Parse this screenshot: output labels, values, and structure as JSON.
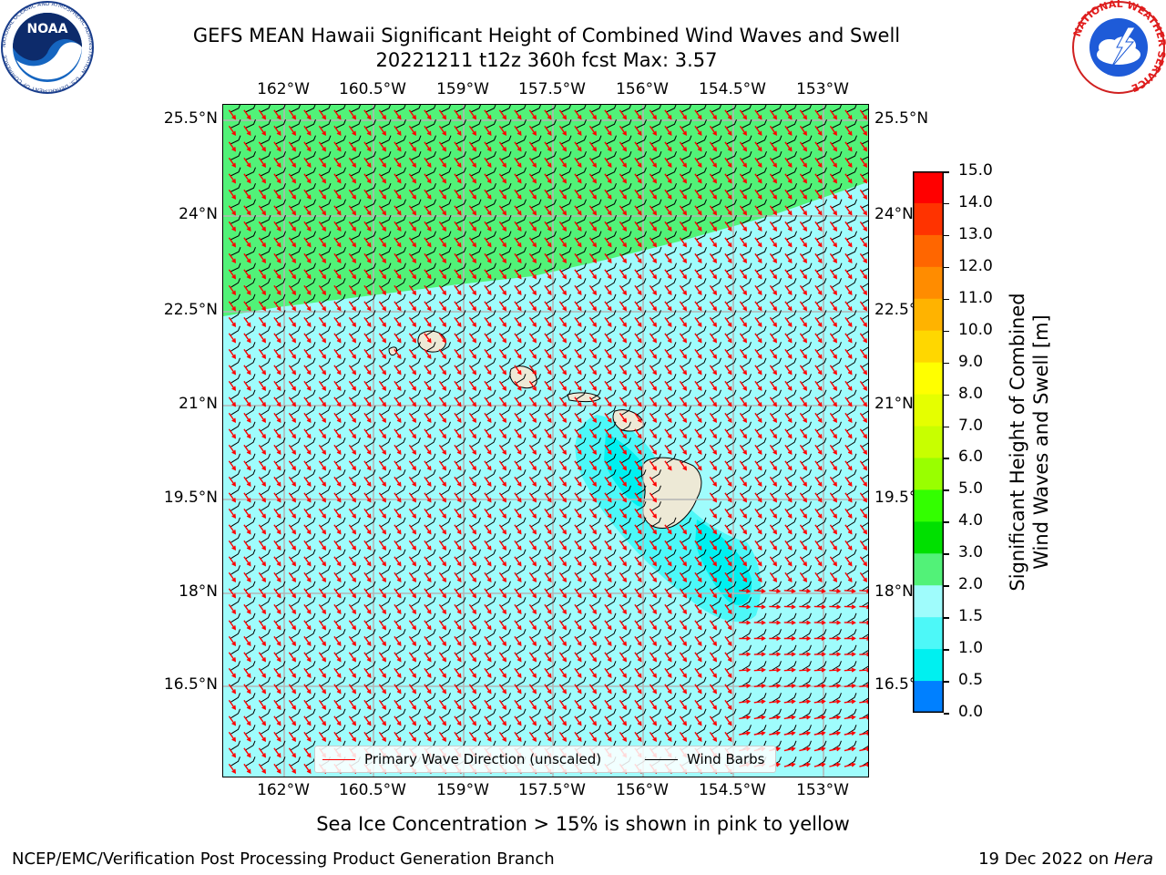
{
  "header": {
    "title_line1": "GEFS MEAN Hawaii Significant Height of Combined Wind Waves and Swell",
    "title_line2": "20221211 t12z 360h fcst   Max: 3.57"
  },
  "logos": {
    "left_name": "NOAA",
    "left_ring_text": "NATIONAL OCEANIC AND ATMOSPHERIC ADMINISTRATION · U.S. DEPARTMENT OF COMMERCE",
    "right_ring_text": "NATIONAL WEATHER SERVICE"
  },
  "map": {
    "lon_labels": [
      "162°W",
      "160.5°W",
      "159°W",
      "157.5°W",
      "156°W",
      "154.5°W",
      "153°W"
    ],
    "lat_labels": [
      "25.5°N",
      "24°N",
      "22.5°N",
      "21°N",
      "19.5°N",
      "18°N",
      "16.5°N"
    ],
    "colors": {
      "ocean_main": "#9ffcfc",
      "ocean_mid": "#4df8f8",
      "ocean_low": "#00f0f0",
      "high_band": "#52f278",
      "land": "#ede9d6",
      "wave_arrow": "#ff0000",
      "wind_barb": "#000000",
      "gridline": "#b4b4b4"
    },
    "legend": {
      "wave_label": "Primary Wave Direction (unscaled)",
      "barb_label": "Wind Barbs"
    }
  },
  "colorbar": {
    "ticks": [
      "15.0",
      "14.0",
      "13.0",
      "12.0",
      "11.0",
      "10.0",
      "9.0",
      "8.0",
      "7.0",
      "6.0",
      "5.0",
      "4.0",
      "3.0",
      "2.0",
      "1.5",
      "1.0",
      "0.5",
      "0.0"
    ],
    "colors": [
      "#ff0000",
      "#ff3300",
      "#ff6600",
      "#ff8c00",
      "#ffb300",
      "#ffd700",
      "#ffff00",
      "#e5ff00",
      "#c8ff00",
      "#99ff00",
      "#33ff00",
      "#00e000",
      "#52f278",
      "#9ffcfc",
      "#4df8f8",
      "#00f0f0",
      "#0080ff",
      "#0000ff"
    ],
    "label_line1": "Significant Height of Combined",
    "label_line2": "Wind Waves and Swell [m]"
  },
  "footer": {
    "note": "Sea Ice Concentration > 15% is shown in pink to yellow",
    "left": "NCEP/EMC/Verification Post Processing Product Generation Branch",
    "right_date": "19 Dec 2022 on ",
    "right_host": "Hera"
  }
}
